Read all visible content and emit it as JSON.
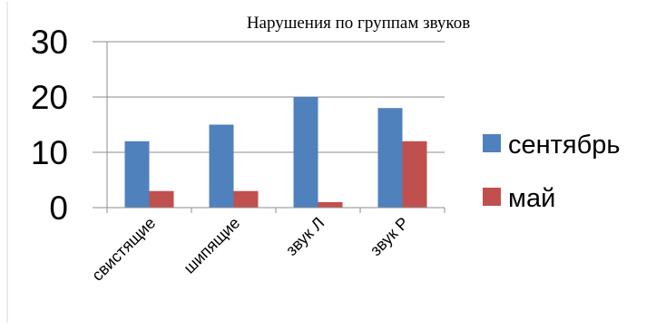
{
  "chart_data": {
    "type": "bar",
    "title": "Нарушения по группам звуков",
    "categories": [
      "свистящие",
      "шипящие",
      "звук Л",
      "звук Р"
    ],
    "series": [
      {
        "name": "сентябрь",
        "values": [
          12,
          15,
          20,
          18
        ],
        "color": "#4F81BD"
      },
      {
        "name": "май",
        "values": [
          3,
          3,
          1,
          12
        ],
        "color": "#C0504D"
      }
    ],
    "yticks": [
      "0",
      "10",
      "20",
      "30"
    ],
    "ylim": [
      0,
      30
    ],
    "grid": true,
    "legend": "right"
  }
}
